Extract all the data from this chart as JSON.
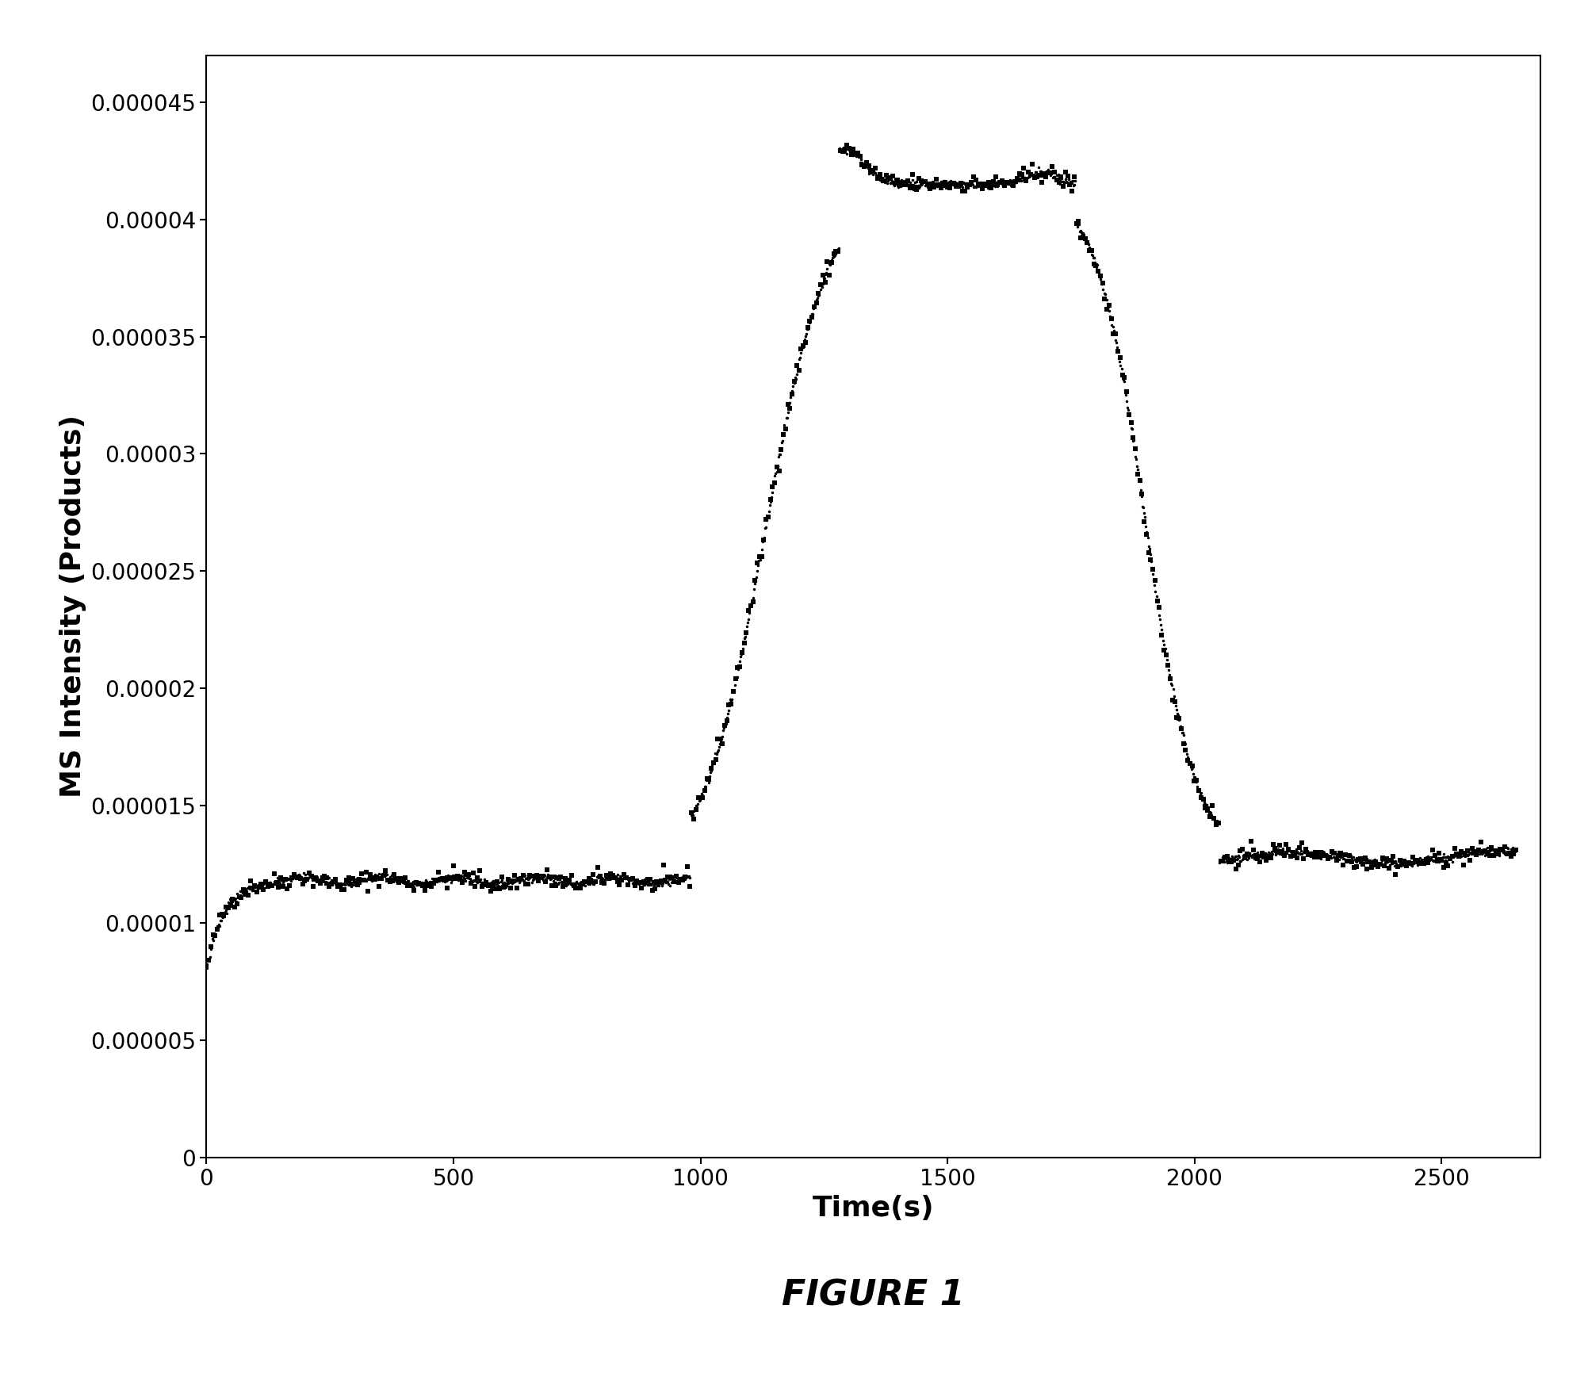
{
  "title": "FIGURE 1",
  "xlabel": "Time(s)",
  "ylabel": "MS Intensity (Products)",
  "xlim": [
    0,
    2700
  ],
  "ylim": [
    0,
    4.7e-05
  ],
  "xticks": [
    0,
    500,
    1000,
    1500,
    2000,
    2500
  ],
  "yticks": [
    0,
    5e-06,
    1e-05,
    1.5e-05,
    2e-05,
    2.5e-05,
    3e-05,
    3.5e-05,
    4e-05,
    4.5e-05
  ],
  "background_color": "#ffffff",
  "line_color": "#000000",
  "figure_label_fontsize": 32,
  "axis_label_fontsize": 26,
  "tick_label_fontsize": 20,
  "figwidth": 20.03,
  "figheight": 17.38,
  "dpi": 100
}
